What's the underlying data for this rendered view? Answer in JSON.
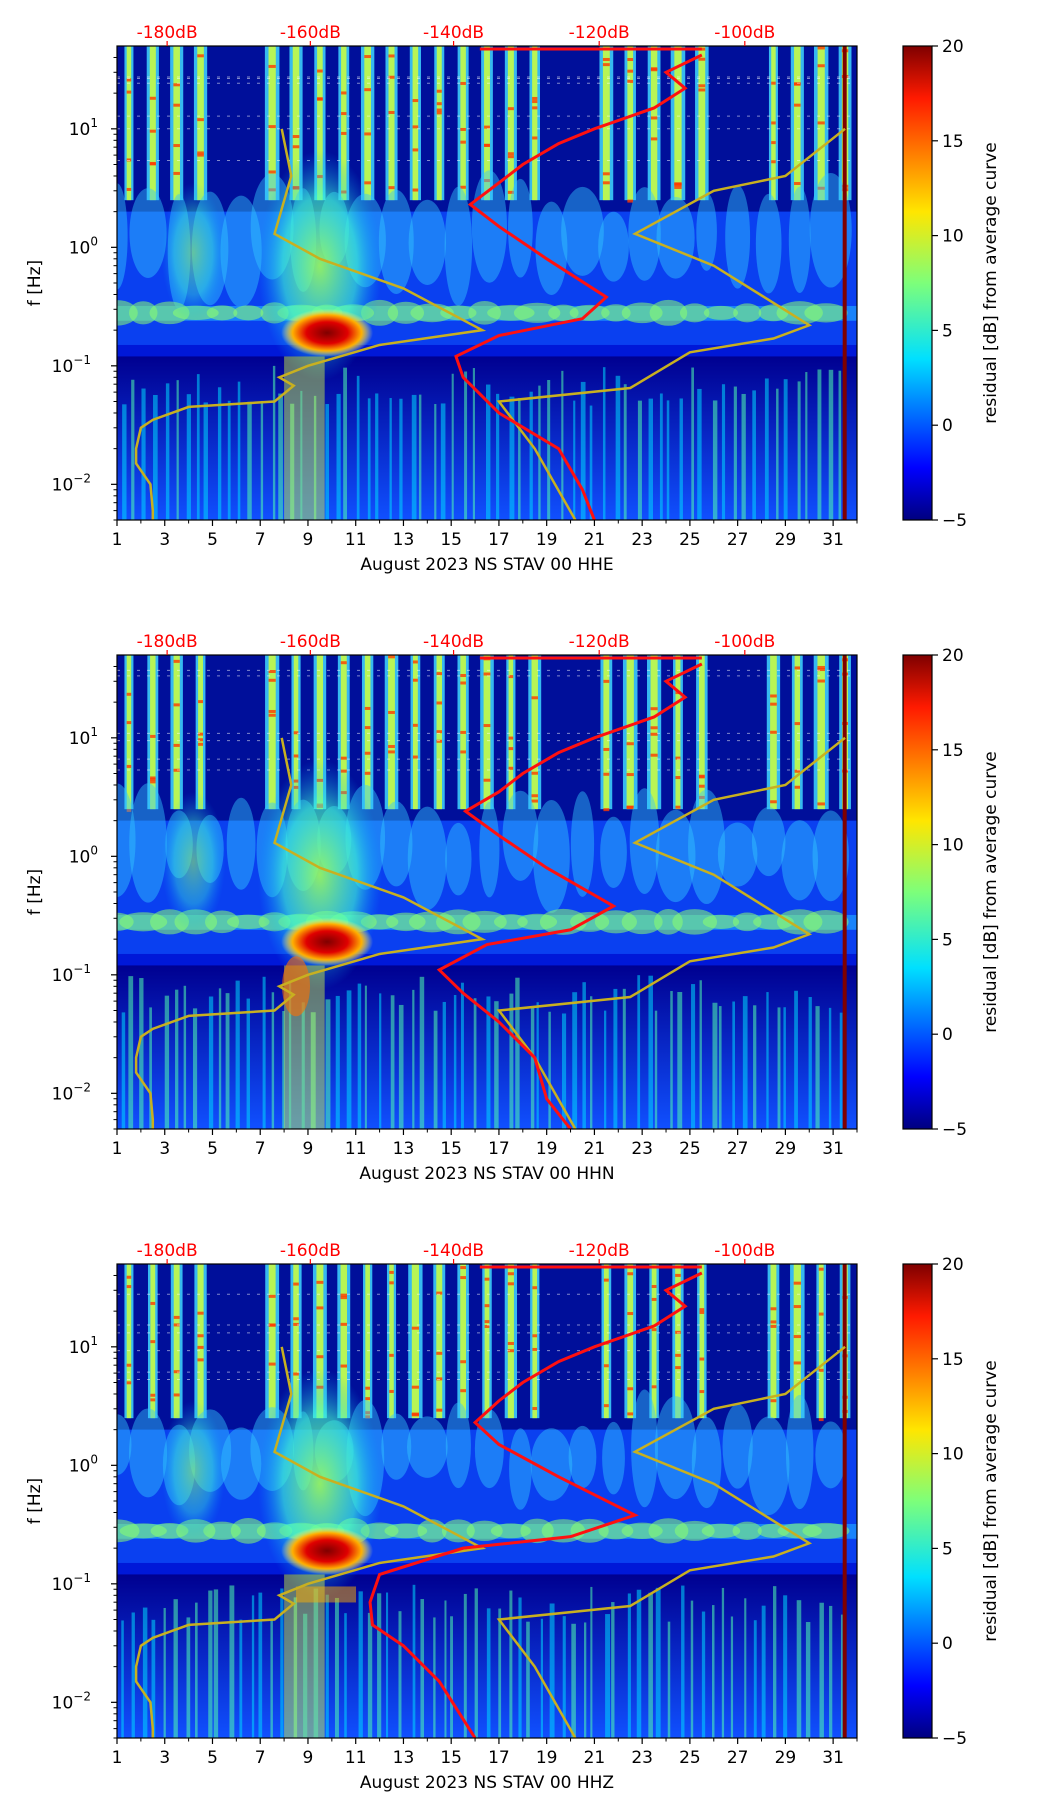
{
  "chart_data": [
    {
      "type": "heatmap",
      "xlabel": "August 2023 NS STAV 00 HHE",
      "ylabel": "f [Hz]",
      "x_ticks": [
        "1",
        "3",
        "5",
        "7",
        "9",
        "11",
        "13",
        "15",
        "17",
        "19",
        "21",
        "23",
        "25",
        "27",
        "29",
        "31"
      ],
      "y_ticks": [
        {
          "label": "10",
          "exp": "1"
        },
        {
          "label": "10",
          "exp": "0"
        },
        {
          "label": "10",
          "exp": "−1"
        },
        {
          "label": "10",
          "exp": "−2"
        }
      ],
      "top_labels": [
        "-180dB",
        "-160dB",
        "-140dB",
        "-120dB",
        "-100dB"
      ],
      "colorbar": {
        "label": "residual [dB] from average curve",
        "ticks": [
          "20",
          "15",
          "10",
          "5",
          "0",
          "−5"
        ],
        "range": [
          -5,
          20
        ]
      },
      "xlim": [
        1,
        32
      ],
      "ylim_hz": [
        0.005,
        50
      ]
    },
    {
      "type": "heatmap",
      "xlabel": "August 2023 NS STAV 00 HHN",
      "ylabel": "f [Hz]",
      "x_ticks": [
        "1",
        "3",
        "5",
        "7",
        "9",
        "11",
        "13",
        "15",
        "17",
        "19",
        "21",
        "23",
        "25",
        "27",
        "29",
        "31"
      ],
      "y_ticks": [
        {
          "label": "10",
          "exp": "1"
        },
        {
          "label": "10",
          "exp": "0"
        },
        {
          "label": "10",
          "exp": "−1"
        },
        {
          "label": "10",
          "exp": "−2"
        }
      ],
      "top_labels": [
        "-180dB",
        "-160dB",
        "-140dB",
        "-120dB",
        "-100dB"
      ],
      "colorbar": {
        "label": "residual [dB] from average curve",
        "ticks": [
          "20",
          "15",
          "10",
          "5",
          "0",
          "−5"
        ],
        "range": [
          -5,
          20
        ]
      },
      "xlim": [
        1,
        32
      ],
      "ylim_hz": [
        0.005,
        50
      ]
    },
    {
      "type": "heatmap",
      "xlabel": "August 2023 NS STAV 00 HHZ",
      "ylabel": "f [Hz]",
      "x_ticks": [
        "1",
        "3",
        "5",
        "7",
        "9",
        "11",
        "13",
        "15",
        "17",
        "19",
        "21",
        "23",
        "25",
        "27",
        "29",
        "31"
      ],
      "y_ticks": [
        {
          "label": "10",
          "exp": "1"
        },
        {
          "label": "10",
          "exp": "0"
        },
        {
          "label": "10",
          "exp": "−1"
        },
        {
          "label": "10",
          "exp": "−2"
        }
      ],
      "top_labels": [
        "-180dB",
        "-160dB",
        "-140dB",
        "-120dB",
        "-100dB"
      ],
      "colorbar": {
        "label": "residual [dB] from average curve",
        "ticks": [
          "20",
          "15",
          "10",
          "5",
          "0",
          "−5"
        ],
        "range": [
          -5,
          20
        ]
      },
      "xlim": [
        1,
        32
      ],
      "ylim_hz": [
        0.005,
        50
      ]
    }
  ]
}
